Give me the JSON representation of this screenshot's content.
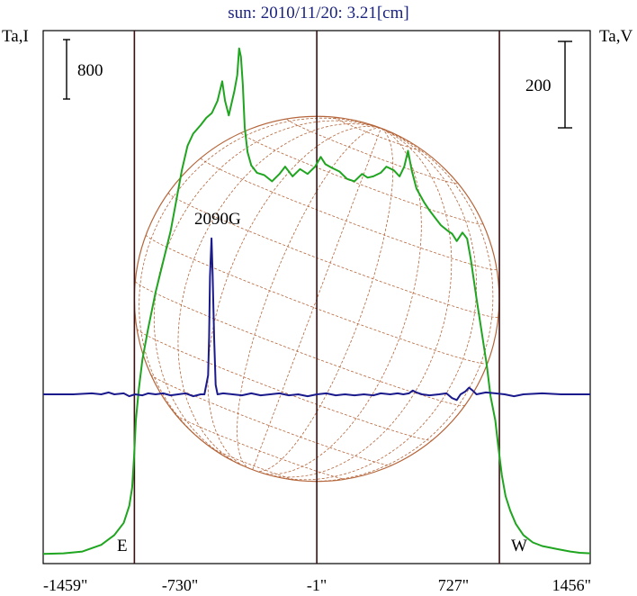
{
  "chart_data": {
    "type": "line",
    "title": "sun: 2010/11/20: 3.21[cm]",
    "ylabel_left": "Ta,I",
    "ylabel_right": "Ta,V",
    "scale_bar_left": "800",
    "scale_bar_right": "200",
    "annotation": "2090G",
    "limb_labels": [
      "E",
      "W"
    ],
    "xlim": [
      -1459,
      1456
    ],
    "xticks": [
      {
        "value": -1459,
        "label": "-1459\""
      },
      {
        "value": -730,
        "label": "-730\""
      },
      {
        "value": -1,
        "label": "-1\""
      },
      {
        "value": 727,
        "label": "727\""
      },
      {
        "value": 1456,
        "label": "1456\""
      }
    ],
    "vertical_lines": [
      -973,
      -1,
      972
    ],
    "solar_disk": {
      "center_x": -1,
      "radius": 972,
      "color": "#b5653a"
    },
    "series": [
      {
        "name": "I",
        "color": "#1fa51f",
        "points": [
          [
            -1459,
            5
          ],
          [
            -1350,
            10
          ],
          [
            -1250,
            25
          ],
          [
            -1150,
            80
          ],
          [
            -1080,
            160
          ],
          [
            -1030,
            260
          ],
          [
            -1000,
            400
          ],
          [
            -985,
            550
          ],
          [
            -975,
            800
          ],
          [
            -965,
            1100
          ],
          [
            -950,
            1350
          ],
          [
            -930,
            1600
          ],
          [
            -900,
            1850
          ],
          [
            -860,
            2150
          ],
          [
            -820,
            2400
          ],
          [
            -780,
            2650
          ],
          [
            -750,
            2900
          ],
          [
            -720,
            3150
          ],
          [
            -690,
            3350
          ],
          [
            -660,
            3450
          ],
          [
            -620,
            3520
          ],
          [
            -590,
            3580
          ],
          [
            -560,
            3620
          ],
          [
            -530,
            3720
          ],
          [
            -505,
            3880
          ],
          [
            -490,
            3720
          ],
          [
            -470,
            3600
          ],
          [
            -455,
            3700
          ],
          [
            -440,
            3800
          ],
          [
            -425,
            3930
          ],
          [
            -415,
            4150
          ],
          [
            -405,
            4080
          ],
          [
            -395,
            3850
          ],
          [
            -385,
            3500
          ],
          [
            -370,
            3300
          ],
          [
            -350,
            3190
          ],
          [
            -320,
            3130
          ],
          [
            -280,
            3110
          ],
          [
            -240,
            3060
          ],
          [
            -200,
            3120
          ],
          [
            -170,
            3180
          ],
          [
            -130,
            3100
          ],
          [
            -90,
            3160
          ],
          [
            -50,
            3120
          ],
          [
            -10,
            3180
          ],
          [
            20,
            3260
          ],
          [
            45,
            3200
          ],
          [
            80,
            3170
          ],
          [
            120,
            3140
          ],
          [
            160,
            3080
          ],
          [
            200,
            3060
          ],
          [
            240,
            3120
          ],
          [
            270,
            3090
          ],
          [
            300,
            3100
          ],
          [
            340,
            3130
          ],
          [
            370,
            3180
          ],
          [
            410,
            3150
          ],
          [
            440,
            3100
          ],
          [
            465,
            3180
          ],
          [
            485,
            3310
          ],
          [
            505,
            3150
          ],
          [
            530,
            3000
          ],
          [
            570,
            2890
          ],
          [
            600,
            2820
          ],
          [
            630,
            2760
          ],
          [
            660,
            2700
          ],
          [
            700,
            2650
          ],
          [
            720,
            2630
          ],
          [
            745,
            2570
          ],
          [
            775,
            2640
          ],
          [
            800,
            2590
          ],
          [
            820,
            2420
          ],
          [
            850,
            2100
          ],
          [
            880,
            1800
          ],
          [
            905,
            1550
          ],
          [
            925,
            1300
          ],
          [
            950,
            1100
          ],
          [
            965,
            900
          ],
          [
            985,
            650
          ],
          [
            1005,
            480
          ],
          [
            1030,
            360
          ],
          [
            1060,
            250
          ],
          [
            1100,
            160
          ],
          [
            1150,
            100
          ],
          [
            1200,
            70
          ],
          [
            1280,
            45
          ],
          [
            1350,
            25
          ],
          [
            1400,
            15
          ],
          [
            1456,
            10
          ]
        ]
      },
      {
        "name": "V",
        "color": "#1a1a8c",
        "points": [
          [
            -1459,
            0
          ],
          [
            -1300,
            0
          ],
          [
            -1200,
            1
          ],
          [
            -1150,
            0
          ],
          [
            -1110,
            2
          ],
          [
            -1080,
            0
          ],
          [
            -1030,
            1
          ],
          [
            -1000,
            -2
          ],
          [
            -970,
            0
          ],
          [
            -930,
            -1
          ],
          [
            -900,
            1
          ],
          [
            -860,
            0
          ],
          [
            -820,
            1
          ],
          [
            -780,
            -1
          ],
          [
            -740,
            0
          ],
          [
            -700,
            1
          ],
          [
            -660,
            -2
          ],
          [
            -620,
            0
          ],
          [
            -600,
            0
          ],
          [
            -580,
            20
          ],
          [
            -575,
            60
          ],
          [
            -570,
            125
          ],
          [
            -562,
            165
          ],
          [
            -556,
            128
          ],
          [
            -548,
            60
          ],
          [
            -540,
            10
          ],
          [
            -530,
            0
          ],
          [
            -500,
            1
          ],
          [
            -450,
            0
          ],
          [
            -400,
            -1
          ],
          [
            -350,
            1
          ],
          [
            -300,
            -1
          ],
          [
            -250,
            0
          ],
          [
            -200,
            1
          ],
          [
            -150,
            -1
          ],
          [
            -100,
            0
          ],
          [
            -50,
            -2
          ],
          [
            0,
            0
          ],
          [
            50,
            1
          ],
          [
            100,
            -1
          ],
          [
            150,
            0
          ],
          [
            200,
            -1
          ],
          [
            250,
            0
          ],
          [
            300,
            -1
          ],
          [
            340,
            1
          ],
          [
            390,
            0
          ],
          [
            430,
            1
          ],
          [
            460,
            0
          ],
          [
            490,
            1
          ],
          [
            510,
            4
          ],
          [
            530,
            2
          ],
          [
            560,
            0
          ],
          [
            600,
            -1
          ],
          [
            650,
            0
          ],
          [
            690,
            1
          ],
          [
            720,
            -4
          ],
          [
            745,
            -6
          ],
          [
            765,
            0
          ],
          [
            790,
            3
          ],
          [
            810,
            7
          ],
          [
            830,
            4
          ],
          [
            850,
            0
          ],
          [
            900,
            2
          ],
          [
            950,
            1
          ],
          [
            1000,
            0
          ],
          [
            1050,
            -2
          ],
          [
            1100,
            0
          ],
          [
            1200,
            1
          ],
          [
            1300,
            0
          ],
          [
            1400,
            0
          ],
          [
            1456,
            0
          ]
        ]
      }
    ],
    "grid": false
  }
}
